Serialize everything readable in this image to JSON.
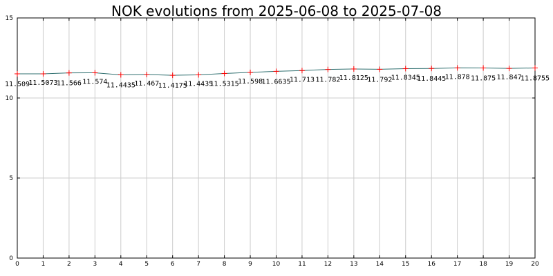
{
  "chart_data": {
    "type": "line",
    "title": "NOK evolutions from 2025-06-08 to 2025-07-08",
    "xlabel": "",
    "ylabel": "",
    "x": [
      0,
      1,
      2,
      3,
      4,
      5,
      6,
      7,
      8,
      9,
      10,
      11,
      12,
      13,
      14,
      15,
      16,
      17,
      18,
      19,
      20
    ],
    "x_tick_labels": [
      "0",
      "1",
      "2",
      "3",
      "4",
      "5",
      "6",
      "7",
      "8",
      "9",
      "10",
      "11",
      "12",
      "13",
      "14",
      "15",
      "16",
      "17",
      "18",
      "19",
      "20"
    ],
    "y_ticks": [
      0,
      5,
      10,
      15
    ],
    "y_tick_labels": [
      "0",
      "5",
      "10",
      "15"
    ],
    "xlim": [
      0,
      20
    ],
    "ylim": [
      0,
      15
    ],
    "grid": true,
    "series": [
      {
        "values": [
          11.509,
          11.5073,
          11.566,
          11.574,
          11.4435,
          11.467,
          11.4175,
          11.4435,
          11.5315,
          11.598,
          11.6635,
          11.713,
          11.782,
          11.8125,
          11.792,
          11.8345,
          11.8445,
          11.878,
          11.875,
          11.847,
          11.8755
        ],
        "labels": [
          "11.509",
          "11.5073",
          "11.566",
          "11.574",
          "11.4435",
          "11.467",
          "11.4175",
          "11.4435",
          "11.5315",
          "11.598",
          "11.6635",
          "11.713",
          "11.782",
          "11.8125",
          "11.792",
          "11.8345",
          "11.8445",
          "11.878",
          "11.875",
          "11.847",
          "11.8755"
        ],
        "line_color": "#2f6f6f",
        "marker_color": "#ff0000"
      }
    ]
  }
}
